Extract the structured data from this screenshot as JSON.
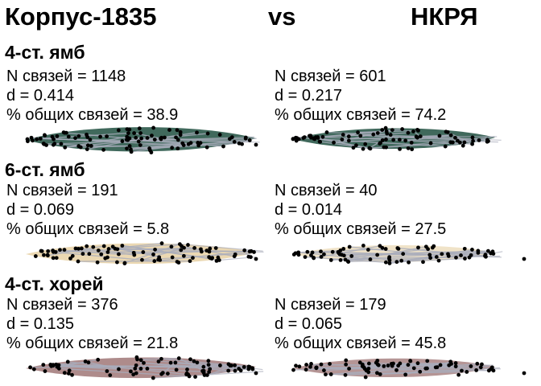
{
  "header": {
    "left": "Корпус-1835",
    "vs": "vs",
    "right": "НКРЯ"
  },
  "labels": {
    "links": "N связей = ",
    "d": "d = ",
    "shared": "% общих связей = "
  },
  "colors": {
    "iamb4": "#1f4f3f",
    "iamb6": "#c58f22",
    "trochee4": "#6b2b2b",
    "edge": "#a9acbb",
    "node": "#000000"
  },
  "panels": [
    {
      "meter": "4-ст. ямб",
      "color_key": "iamb4",
      "corpus1835": {
        "links": "1148",
        "d": "0.414",
        "shared": "38.9"
      },
      "nkrya": {
        "links": "601",
        "d": "0.217",
        "shared": "74.2"
      }
    },
    {
      "meter": "6-ст. ямб",
      "color_key": "iamb6",
      "corpus1835": {
        "links": "191",
        "d": "0.069",
        "shared": "5.8"
      },
      "nkrya": {
        "links": "40",
        "d": "0.014",
        "shared": "27.5"
      }
    },
    {
      "meter": "4-ст. хорей",
      "color_key": "trochee4",
      "corpus1835": {
        "links": "376",
        "d": "0.135",
        "shared": "21.8"
      },
      "nkrya": {
        "links": "179",
        "d": "0.065",
        "shared": "45.8"
      }
    }
  ],
  "chart_data": {
    "type": "table",
    "series": [
      {
        "name": "Корпус-1835",
        "meters": [
          "4-ст. ямб",
          "6-ст. ямб",
          "4-ст. хорей"
        ],
        "links": [
          1148,
          191,
          376
        ],
        "d": [
          0.414,
          0.069,
          0.135
        ],
        "shared_pct": [
          38.9,
          5.8,
          21.8
        ]
      },
      {
        "name": "НКРЯ",
        "meters": [
          "4-ст. ямб",
          "6-ст. ямб",
          "4-ст. хорей"
        ],
        "links": [
          601,
          40,
          179
        ],
        "d": [
          0.217,
          0.014,
          0.065
        ],
        "shared_pct": [
          74.2,
          27.5,
          45.8
        ]
      }
    ]
  }
}
